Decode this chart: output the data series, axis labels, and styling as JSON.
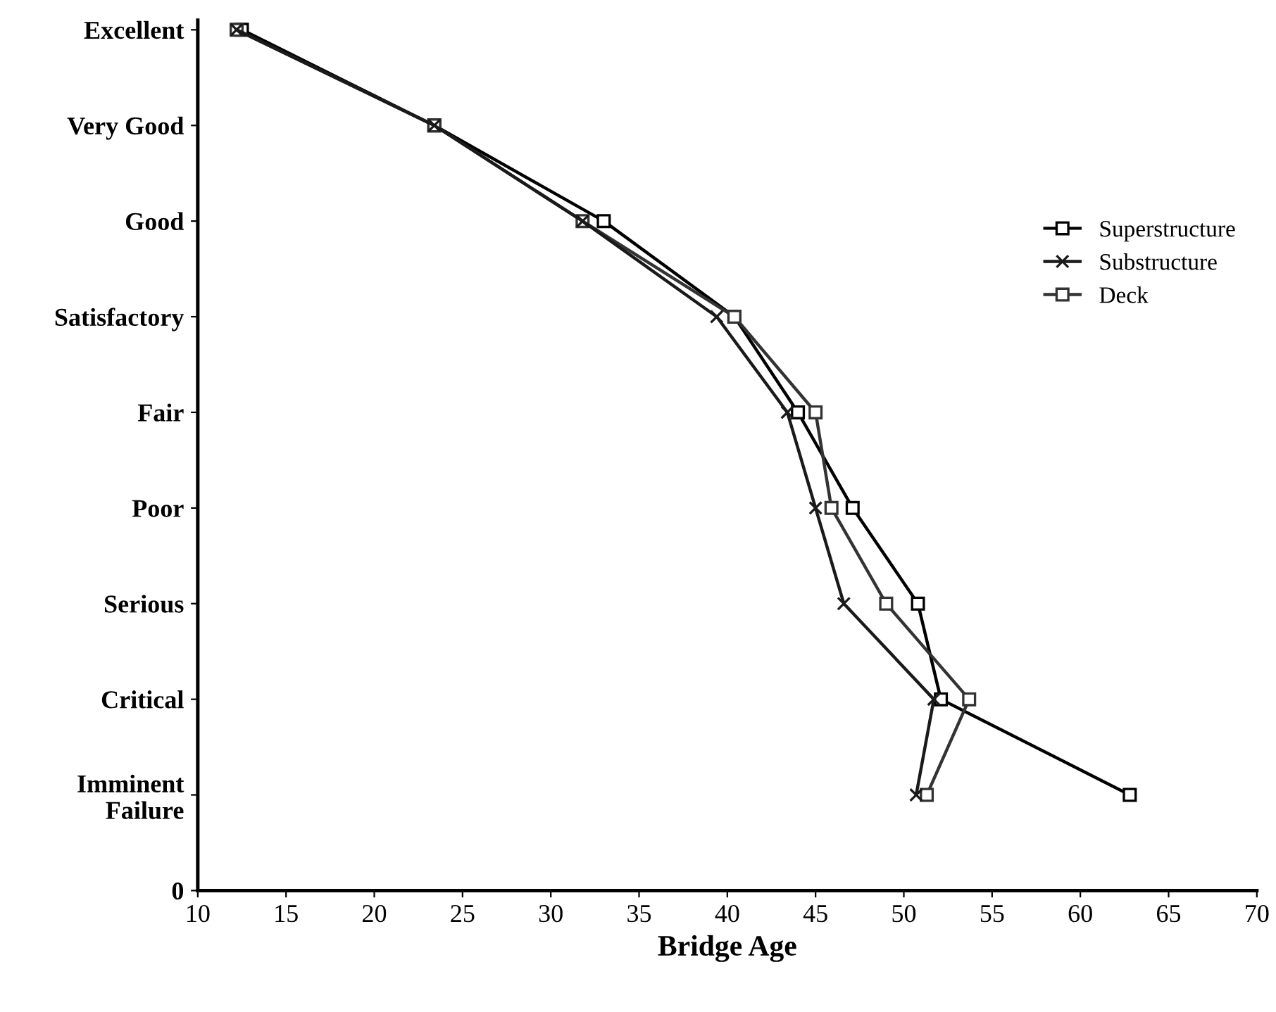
{
  "chart_data": {
    "type": "line",
    "orientation": "horizontal",
    "xlabel": "Bridge Age",
    "xlim": [
      10,
      70
    ],
    "xticks": [
      10,
      15,
      20,
      25,
      30,
      35,
      40,
      45,
      50,
      55,
      60,
      65,
      70
    ],
    "categories": [
      "Excellent",
      "Very Good",
      "Good",
      "Satisfactory",
      "Fair",
      "Poor",
      "Serious",
      "Critical",
      "Imminent\nFailure",
      "0"
    ],
    "grid": false,
    "legend": "right",
    "series": [
      {
        "name": "Superstructure",
        "color": "#000000",
        "marker": "square",
        "values": [
          12.5,
          23.4,
          33.0,
          40.4,
          44.0,
          47.1,
          50.8,
          52.1,
          62.8,
          null
        ]
      },
      {
        "name": "Substructure",
        "color": "#1a1a1a",
        "marker": "cross",
        "values": [
          12.2,
          23.4,
          31.8,
          39.4,
          43.4,
          45.0,
          46.6,
          51.7,
          50.7,
          null
        ]
      },
      {
        "name": "Deck",
        "color": "#333333",
        "marker": "square",
        "values": [
          12.2,
          23.4,
          31.8,
          40.4,
          45.0,
          45.9,
          49.0,
          53.7,
          51.3,
          null
        ]
      }
    ]
  }
}
